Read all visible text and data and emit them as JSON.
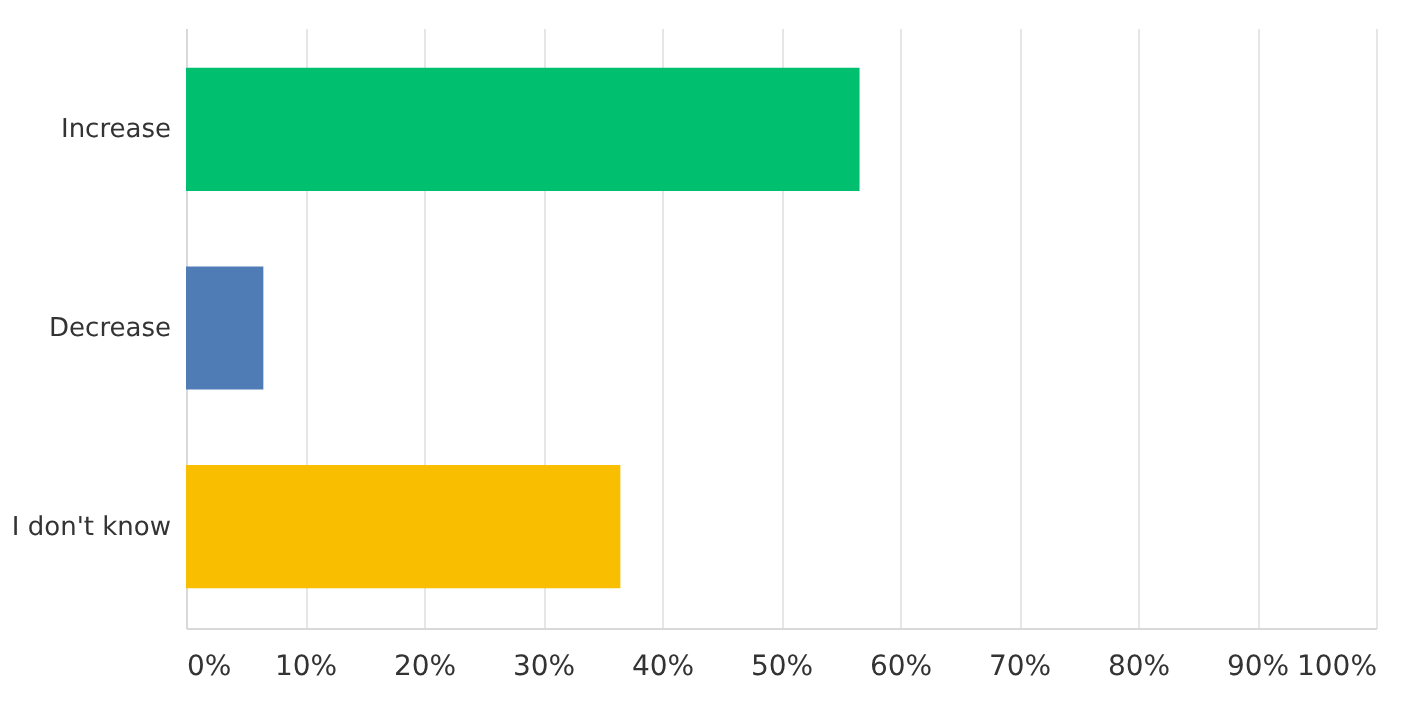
{
  "chart_data": {
    "type": "bar",
    "orientation": "horizontal",
    "categories": [
      "Increase",
      "Decrease",
      "I don't know"
    ],
    "values": [
      56.6,
      6.5,
      36.5
    ],
    "colors": [
      "#00bf6f",
      "#507cb6",
      "#f9be00"
    ],
    "xlim": [
      0,
      100
    ],
    "xticks": [
      {
        "value": 0,
        "label": "0%"
      },
      {
        "value": 10,
        "label": "10%"
      },
      {
        "value": 20,
        "label": "20%"
      },
      {
        "value": 30,
        "label": "30%"
      },
      {
        "value": 40,
        "label": "40%"
      },
      {
        "value": 50,
        "label": "50%"
      },
      {
        "value": 60,
        "label": "60%"
      },
      {
        "value": 70,
        "label": "70%"
      },
      {
        "value": 80,
        "label": "80%"
      },
      {
        "value": 90,
        "label": "90%"
      },
      {
        "value": 100,
        "label": "100%"
      }
    ],
    "grid": "x"
  }
}
